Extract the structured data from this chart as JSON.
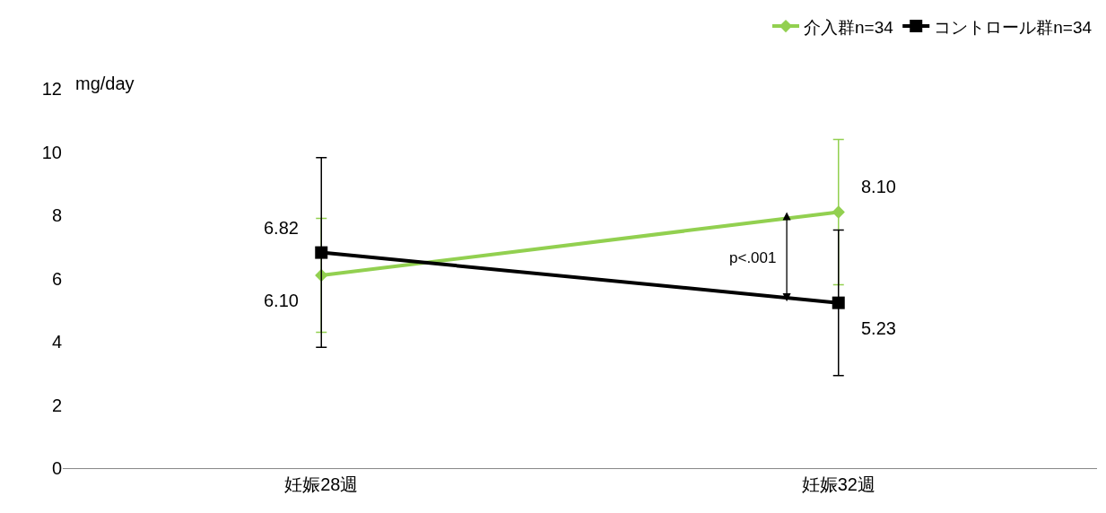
{
  "chart_data": {
    "type": "line",
    "ylabel": "mg/day",
    "categories": [
      "妊娠28週",
      "妊娠32週"
    ],
    "series": [
      {
        "name": "介入群n=34",
        "color": "#92d050",
        "marker": "diamond",
        "values": [
          6.1,
          8.1
        ],
        "errors": [
          1.8,
          2.3
        ],
        "value_labels": [
          "6.10",
          "8.10"
        ]
      },
      {
        "name": "コントロール群n=34",
        "color": "#000000",
        "marker": "square",
        "values": [
          6.82,
          5.23
        ],
        "errors": [
          3.0,
          2.3
        ],
        "value_labels": [
          "6.82",
          "5.23"
        ]
      }
    ],
    "ylim": [
      0,
      12
    ],
    "yticks": [
      0,
      2,
      4,
      6,
      8,
      10,
      12
    ],
    "grid": false,
    "legend": "top right",
    "annotations": [
      "p<.001"
    ]
  }
}
